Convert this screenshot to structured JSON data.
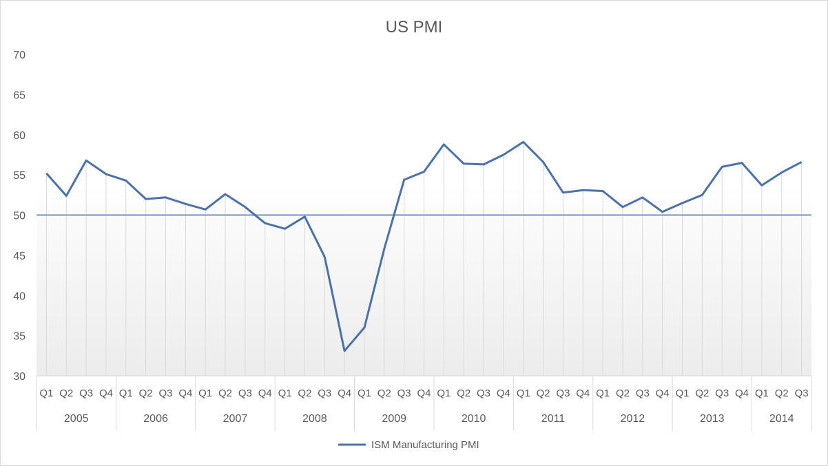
{
  "chart_data": {
    "type": "line",
    "title": "US PMI",
    "xlabel": "",
    "ylabel": "",
    "ylim": [
      30,
      70
    ],
    "y_ticks": [
      30,
      35,
      40,
      45,
      50,
      55,
      60,
      65,
      70
    ],
    "grid": "vertical category lines",
    "legend_position": "bottom",
    "reference_line": {
      "value": 50,
      "color": "#8faadc"
    },
    "groups": [
      {
        "label": "2005",
        "quarters": [
          "Q1",
          "Q2",
          "Q3",
          "Q4"
        ]
      },
      {
        "label": "2006",
        "quarters": [
          "Q1",
          "Q2",
          "Q3",
          "Q4"
        ]
      },
      {
        "label": "2007",
        "quarters": [
          "Q1",
          "Q2",
          "Q3",
          "Q4"
        ]
      },
      {
        "label": "2008",
        "quarters": [
          "Q1",
          "Q2",
          "Q3",
          "Q4"
        ]
      },
      {
        "label": "2009",
        "quarters": [
          "Q1",
          "Q2",
          "Q3",
          "Q4"
        ]
      },
      {
        "label": "2010",
        "quarters": [
          "Q1",
          "Q2",
          "Q3",
          "Q4"
        ]
      },
      {
        "label": "2011",
        "quarters": [
          "Q1",
          "Q2",
          "Q3",
          "Q4"
        ]
      },
      {
        "label": "2012",
        "quarters": [
          "Q1",
          "Q2",
          "Q3",
          "Q4"
        ]
      },
      {
        "label": "2013",
        "quarters": [
          "Q1",
          "Q2",
          "Q3",
          "Q4"
        ]
      },
      {
        "label": "2014",
        "quarters": [
          "Q1",
          "Q2",
          "Q3"
        ]
      }
    ],
    "series": [
      {
        "name": "ISM Manufacturing PMI",
        "color": "#4a72a8",
        "values": [
          55.2,
          52.4,
          56.8,
          55.1,
          54.3,
          52.0,
          52.2,
          51.4,
          50.7,
          52.6,
          51.0,
          49.0,
          48.3,
          49.8,
          44.8,
          33.1,
          36.0,
          45.8,
          54.4,
          55.4,
          58.8,
          56.4,
          56.3,
          57.5,
          59.1,
          56.6,
          52.8,
          53.1,
          53.0,
          51.0,
          52.2,
          50.4,
          51.5,
          52.5,
          56.0,
          56.5,
          53.7,
          55.3,
          56.6
        ]
      }
    ]
  },
  "legend": {
    "label": "ISM Manufacturing PMI"
  }
}
